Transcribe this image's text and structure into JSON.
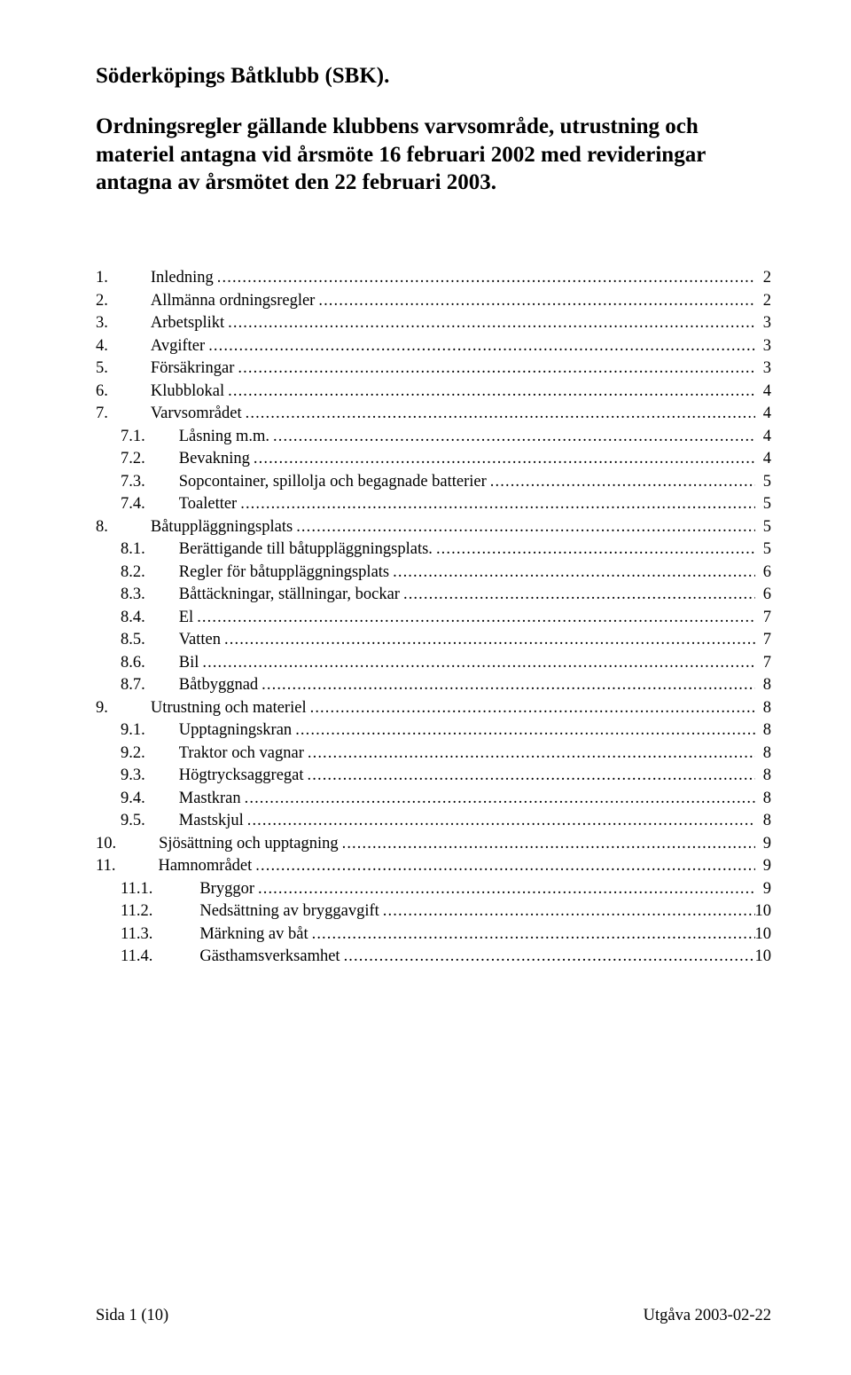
{
  "title": "Söderköpings Båtklubb (SBK).",
  "subtitle": "Ordningsregler gällande klubbens varvsområde, utrustning och materiel antagna vid årsmöte 16 februari 2002  med revideringar antagna av årsmötet den 22 februari 2003.",
  "toc": [
    {
      "num": "1.",
      "label": "Inledning",
      "page": "2",
      "indent": 0
    },
    {
      "num": "2.",
      "label": "Allmänna ordningsregler",
      "page": "2",
      "indent": 0
    },
    {
      "num": "3.",
      "label": "Arbetsplikt",
      "page": "3",
      "indent": 0
    },
    {
      "num": "4.",
      "label": "Avgifter",
      "page": "3",
      "indent": 0
    },
    {
      "num": "5.",
      "label": "Försäkringar",
      "page": "3",
      "indent": 0
    },
    {
      "num": "6.",
      "label": "Klubblokal",
      "page": "4",
      "indent": 0
    },
    {
      "num": "7.",
      "label": "Varvsområdet",
      "page": "4",
      "indent": 0
    },
    {
      "num": "7.1.",
      "label": "Låsning m.m.",
      "page": "4",
      "indent": 1
    },
    {
      "num": "7.2.",
      "label": "Bevakning",
      "page": "4",
      "indent": 1
    },
    {
      "num": "7.3.",
      "label": "Sopcontainer, spillolja och begagnade batterier",
      "page": "5",
      "indent": 1
    },
    {
      "num": "7.4.",
      "label": "Toaletter",
      "page": "5",
      "indent": 1
    },
    {
      "num": "8.",
      "label": "Båtuppläggningsplats",
      "page": "5",
      "indent": 0
    },
    {
      "num": "8.1.",
      "label": "Berättigande till båtuppläggningsplats.",
      "page": "5",
      "indent": 1
    },
    {
      "num": "8.2.",
      "label": "Regler för båtuppläggningsplats",
      "page": "6",
      "indent": 1
    },
    {
      "num": "8.3.",
      "label": "Båttäckningar, ställningar, bockar",
      "page": "6",
      "indent": 1
    },
    {
      "num": "8.4.",
      "label": "El",
      "page": "7",
      "indent": 1
    },
    {
      "num": "8.5.",
      "label": "Vatten",
      "page": "7",
      "indent": 1
    },
    {
      "num": "8.6.",
      "label": "Bil",
      "page": "7",
      "indent": 1
    },
    {
      "num": "8.7.",
      "label": "Båtbyggnad",
      "page": "8",
      "indent": 1
    },
    {
      "num": "9.",
      "label": "Utrustning och materiel",
      "page": "8",
      "indent": 0
    },
    {
      "num": "9.1.",
      "label": "Upptagningskran",
      "page": "8",
      "indent": 1
    },
    {
      "num": "9.2.",
      "label": "Traktor och vagnar",
      "page": "8",
      "indent": 1
    },
    {
      "num": "9.3.",
      "label": "Högtrycksaggregat",
      "page": "8",
      "indent": 1
    },
    {
      "num": "9.4.",
      "label": "Mastkran",
      "page": "8",
      "indent": 1
    },
    {
      "num": "9.5.",
      "label": "Mastskjul",
      "page": "8",
      "indent": 1
    },
    {
      "num": "10.",
      "label": "Sjösättning och upptagning",
      "page": "9",
      "indent": 0
    },
    {
      "num": "11.",
      "label": "Hamnområdet",
      "page": "9",
      "indent": 0
    },
    {
      "num": "11.1.",
      "label": "Bryggor",
      "page": "9",
      "indent": 2
    },
    {
      "num": "11.2.",
      "label": "Nedsättning av bryggavgift",
      "page": "10",
      "indent": 2
    },
    {
      "num": "11.3.",
      "label": "Märkning av båt",
      "page": "10",
      "indent": 2
    },
    {
      "num": "11.4.",
      "label": "Gästhamsverksamhet",
      "page": "10",
      "indent": 2
    }
  ],
  "footer": {
    "left": "Sida 1 (10)",
    "right": "Utgåva 2003-02-22"
  }
}
